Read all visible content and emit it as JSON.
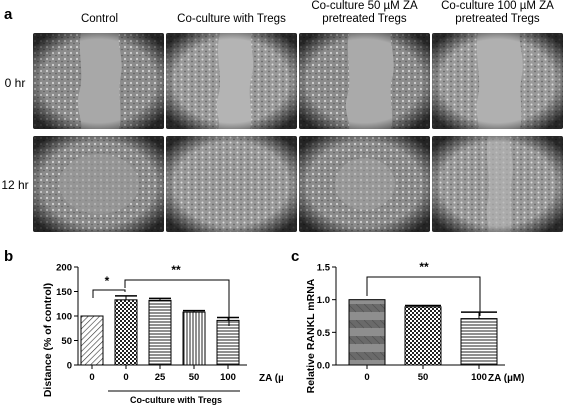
{
  "panel_a": {
    "letter": "a",
    "columns": [
      "Control",
      "Co-culture with Tregs",
      "Co-culture 50 µM ZA pretreated Tregs",
      "Co-culture 100 µM ZA pretreated Tregs"
    ],
    "rows": [
      "0 hr",
      "12 hr"
    ]
  },
  "panel_b": {
    "letter": "b",
    "group_label": "Co-culture with Tregs",
    "sig": [
      "*",
      "**"
    ]
  },
  "panel_c": {
    "letter": "c",
    "sig": [
      "**"
    ]
  },
  "chart_data": [
    {
      "type": "bar",
      "ylabel": "Distance (% of control)",
      "xlabel": "ZA (µM)",
      "categories": [
        "0",
        "0",
        "25",
        "50",
        "100"
      ],
      "values": [
        100,
        133,
        132,
        108,
        91
      ],
      "errors": [
        0,
        8,
        4,
        3,
        6
      ],
      "ylim": [
        0,
        200
      ],
      "yticks": [
        0,
        50,
        100,
        150,
        200
      ],
      "fills": [
        "hatch-diag",
        "checker",
        "hatch-horiz",
        "hatch-vert",
        "hatch-horiz"
      ]
    },
    {
      "type": "bar",
      "ylabel": "Relative RANKL mRNA",
      "xlabel": "ZA (µM)",
      "categories": [
        "0",
        "50",
        "100"
      ],
      "values": [
        1.0,
        0.89,
        0.71
      ],
      "errors": [
        0,
        0.02,
        0.1
      ],
      "ylim": [
        0,
        1.5
      ],
      "yticks": [
        0.0,
        0.5,
        1.0,
        1.5
      ],
      "ytick_labels": [
        "0.0",
        "0.5",
        "1.0",
        "1.5"
      ],
      "fills": [
        "stripes-soft",
        "checker",
        "hatch-horiz"
      ]
    }
  ]
}
